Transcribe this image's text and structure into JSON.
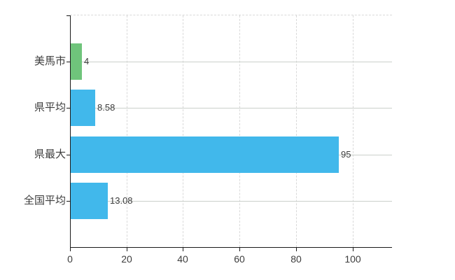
{
  "chart_data": {
    "type": "bar",
    "orientation": "horizontal",
    "title": "",
    "categories": [
      "美馬市",
      "県平均",
      "県最大",
      "全国平均"
    ],
    "values": [
      4,
      8.58,
      95,
      13.08
    ],
    "value_labels": [
      "4",
      "8.58",
      "95",
      "13.08"
    ],
    "bar_colors": [
      "#6fc47b",
      "#41b8eb",
      "#41b8eb",
      "#41b8eb"
    ],
    "x_tick_labels": [
      "0",
      "20",
      "40",
      "60",
      "80",
      "100"
    ],
    "x_tick_values": [
      0,
      20,
      40,
      60,
      80,
      100
    ],
    "xlim": [
      0,
      114
    ],
    "legend": "none",
    "grid": {
      "vertical_lines": "dashed",
      "horizontal_lines": "solid",
      "top_border": "dashed"
    }
  },
  "colors": {
    "background": "#ffffff",
    "bar_blue": "#41b8eb",
    "bar_green": "#6fc47b",
    "axis_line": "#1a1a1a",
    "grid_horizontal": "#cbd0cb",
    "grid_vertical": "#d9d9d9",
    "label_text": "#3c3c3c"
  }
}
